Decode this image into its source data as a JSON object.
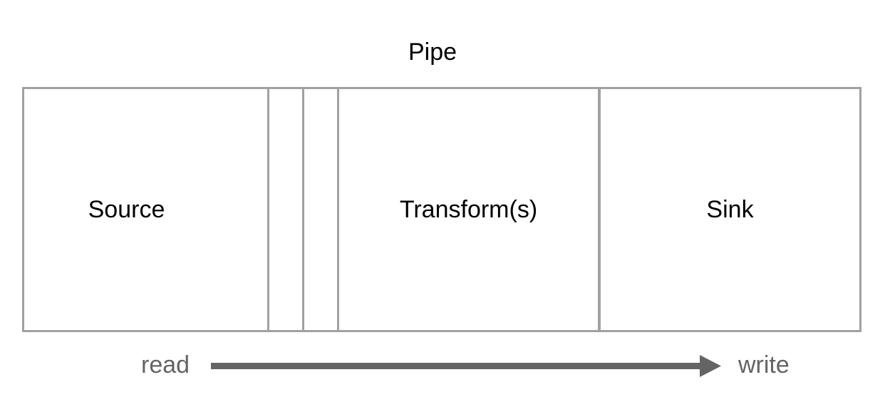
{
  "diagram": {
    "title": "Pipe",
    "stages": {
      "source": "Source",
      "transform": "Transform(s)",
      "sink": "Sink"
    },
    "flow": {
      "start": "read",
      "end": "write"
    },
    "colors": {
      "border": "#a1a1a1",
      "text": "#000000",
      "flow_text": "#646464",
      "arrow": "#646464"
    }
  }
}
